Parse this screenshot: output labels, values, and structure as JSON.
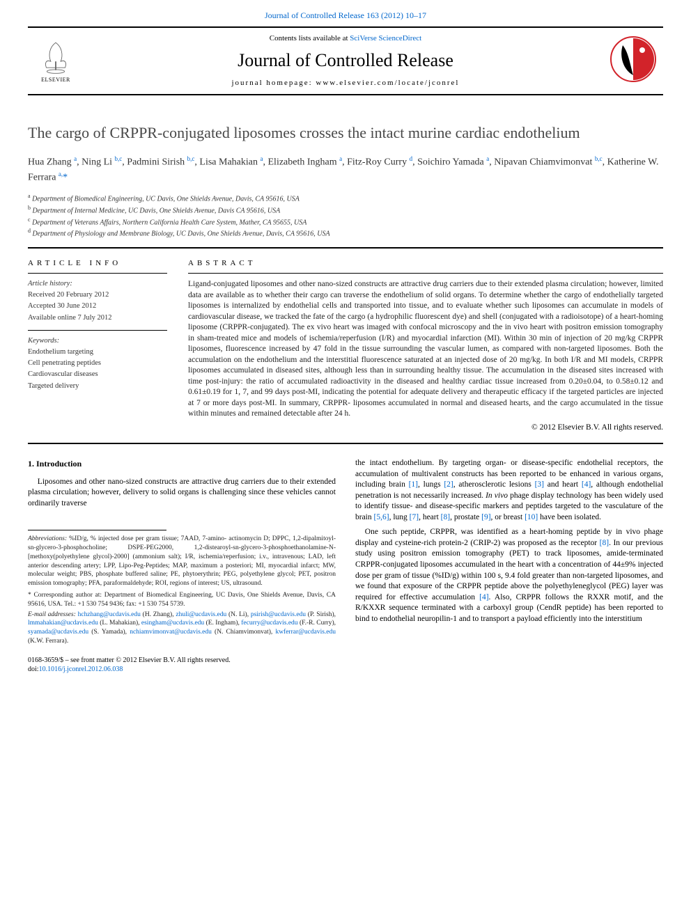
{
  "top_link": {
    "prefix": "",
    "journal": "Journal of Controlled Release",
    "citation": "163 (2012) 10–17"
  },
  "masthead": {
    "contents_prefix": "Contents lists available at",
    "contents_link": "SciVerse ScienceDirect",
    "journal_name": "Journal of Controlled Release",
    "homepage_label": "journal homepage:",
    "homepage_url": "www.elsevier.com/locate/jconrel",
    "elsevier_label": "ELSEVIER",
    "logo_colors": {
      "red": "#d2232a",
      "black": "#000000"
    }
  },
  "title": "The cargo of CRPPR-conjugated liposomes crosses the intact murine cardiac endothelium",
  "authors_html": "Hua Zhang <sup>a</sup>, Ning Li <sup>b,c</sup>, Padmini Sirish <sup>b,c</sup>, Lisa Mahakian <sup>a</sup>, Elizabeth Ingham <sup>a</sup>, Fitz-Roy Curry <sup>d</sup>, Soichiro Yamada <sup>a</sup>, Nipavan Chiamvimonvat <sup>b,c</sup>, Katherine W. Ferrara <sup>a,</sup><span class='star'>*</span>",
  "affiliations": [
    {
      "key": "a",
      "text": "Department of Biomedical Engineering, UC Davis, One Shields Avenue, Davis, CA 95616, USA"
    },
    {
      "key": "b",
      "text": "Department of Internal Medicine, UC Davis, One Shields Avenue, Davis CA 95616, USA"
    },
    {
      "key": "c",
      "text": "Department of Veterans Affairs, Northern California Health Care System, Mather, CA 95655, USA"
    },
    {
      "key": "d",
      "text": "Department of Physiology and Membrane Biology, UC Davis, One Shields Avenue, Davis, CA 95616, USA"
    }
  ],
  "info": {
    "heading": "ARTICLE INFO",
    "history_label": "Article history:",
    "received": "Received 20 February 2012",
    "accepted": "Accepted 30 June 2012",
    "online": "Available online 7 July 2012",
    "keywords_label": "Keywords:",
    "keywords": [
      "Endothelium targeting",
      "Cell penetrating peptides",
      "Cardiovascular diseases",
      "Targeted delivery"
    ]
  },
  "abstract": {
    "heading": "ABSTRACT",
    "text": "Ligand-conjugated liposomes and other nano-sized constructs are attractive drug carriers due to their extended plasma circulation; however, limited data are available as to whether their cargo can traverse the endothelium of solid organs. To determine whether the cargo of endothelially targeted liposomes is internalized by endothelial cells and transported into tissue, and to evaluate whether such liposomes can accumulate in models of cardiovascular disease, we tracked the fate of the cargo (a hydrophilic fluorescent dye) and shell (conjugated with a radioisotope) of a heart-homing liposome (CRPPR-conjugated). The ex vivo heart was imaged with confocal microscopy and the in vivo heart with positron emission tomography in sham-treated mice and models of ischemia/reperfusion (I/R) and myocardial infarction (MI). Within 30 min of injection of 20 mg/kg CRPPR liposomes, fluorescence increased by 47 fold in the tissue surrounding the vascular lumen, as compared with non-targeted liposomes. Both the accumulation on the endothelium and the interstitial fluorescence saturated at an injected dose of 20 mg/kg. In both I/R and MI models, CRPPR liposomes accumulated in diseased sites, although less than in surrounding healthy tissue. The accumulation in the diseased sites increased with time post-injury: the ratio of accumulated radioactivity in the diseased and healthy cardiac tissue increased from 0.20±0.04, to 0.58±0.12 and 0.61±0.19 for 1, 7, and 99 days post-MI, indicating the potential for adequate delivery and therapeutic efficacy if the targeted particles are injected at 7 or more days post-MI. In summary, CRPPR- liposomes accumulated in normal and diseased hearts, and the cargo accumulated in the tissue within minutes and remained detectable after 24 h.",
    "copyright": "© 2012 Elsevier B.V. All rights reserved."
  },
  "section1": {
    "heading": "1. Introduction",
    "p1": "Liposomes and other nano-sized constructs are attractive drug carriers due to their extended plasma circulation; however, delivery to solid organs is challenging since these vehicles cannot ordinarily traverse",
    "p2_parts": [
      "the intact endothelium. By targeting organ- or disease-specific endothelial receptors, the accumulation of multivalent constructs has been reported to be enhanced in various organs, including brain ",
      "[1]",
      ", lungs ",
      "[2]",
      ", atherosclerotic lesions ",
      "[3]",
      " and heart ",
      "[4]",
      ", although endothelial penetration is not necessarily increased. ",
      "In vivo",
      " phage display technology has been widely used to identify tissue- and disease-specific markers and peptides targeted to the vasculature of the brain ",
      "[5,6]",
      ", lung ",
      "[7]",
      ", heart ",
      "[8]",
      ", prostate ",
      "[9]",
      ", or breast ",
      "[10]",
      " have been isolated."
    ],
    "p3_parts": [
      "One such peptide, CRPPR, was identified as a heart-homing peptide by in vivo phage display and cysteine-rich protein-2 (CRIP-2) was proposed as the receptor ",
      "[8]",
      ". In our previous study using positron emission tomography (PET) to track liposomes, amide-terminated CRPPR-conjugated liposomes accumulated in the heart with a concentration of 44±9% injected dose per gram of tissue (%ID/g) within 100 s, 9.4 fold greater than non-targeted liposomes, and we found that exposure of the CRPPR peptide above the polyethyleneglycol (PEG) layer was required for effective accumulation ",
      "[4]",
      ". Also, CRPPR follows the RXXR motif, and the R/KXXR sequence terminated with a carboxyl group (CendR peptide) has been reported to bind to endothelial neuropilin-1 and to transport a payload efficiently into the interstitium"
    ]
  },
  "footnotes": {
    "abbrev_label": "Abbreviations:",
    "abbrev_text": "%ID/g, % injected dose per gram tissue; 7AAD, 7-amino- actinomycin D; DPPC, 1,2-dipalmitoyl-sn-glycero-3-phosphocholine; DSPE-PEG2000, 1,2-distearoyl-sn-glycero-3-phosphoethanolamine-N-[methoxy(polyethylene glycol)-2000] (ammonium salt); I/R, ischemia/reperfusion; i.v., intravenous; LAD, left anterior descending artery; LPP, Lipo-Peg-Peptides; MAP, maximum a posteriori; MI, myocardial infarct; MW, molecular weight; PBS, phosphate buffered saline; PE, phytoerythrin; PEG, polyethylene glycol; PET, positron emission tomography; PFA, paraformaldehyde; ROI, regions of interest; US, ultrasound.",
    "corr_label": "* Corresponding author at:",
    "corr_text": "Department of Biomedical Engineering, UC Davis, One Shields Avenue, Davis, CA 95616, USA. Tel.: +1 530 754 9436; fax: +1 530 754 5739.",
    "email_label": "E-mail addresses:",
    "emails": [
      {
        "addr": "hchzhang@ucdavis.edu",
        "who": "(H. Zhang)"
      },
      {
        "addr": "zhuli@ucdavis.edu",
        "who": "(N. Li)"
      },
      {
        "addr": "psirish@ucdavis.edu",
        "who": "(P. Sirish)"
      },
      {
        "addr": "lmmahakian@ucdavis.edu",
        "who": "(L. Mahakian)"
      },
      {
        "addr": "esingham@ucdavis.edu",
        "who": "(E. Ingham)"
      },
      {
        "addr": "fecurry@ucdavis.edu",
        "who": "(F.-R. Curry)"
      },
      {
        "addr": "syamada@ucdavis.edu",
        "who": "(S. Yamada)"
      },
      {
        "addr": "nchiamvimonvat@ucdavis.edu",
        "who": "(N. Chiamvimonvat)"
      },
      {
        "addr": "kwferrar@ucdavis.edu",
        "who": "(K.W. Ferrara)."
      }
    ]
  },
  "footer": {
    "issn": "0168-3659/$ – see front matter © 2012 Elsevier B.V. All rights reserved.",
    "doi_label": "doi:",
    "doi": "10.1016/j.jconrel.2012.06.038"
  },
  "colors": {
    "link": "#0066cc",
    "text": "#000000",
    "title": "#484848"
  }
}
